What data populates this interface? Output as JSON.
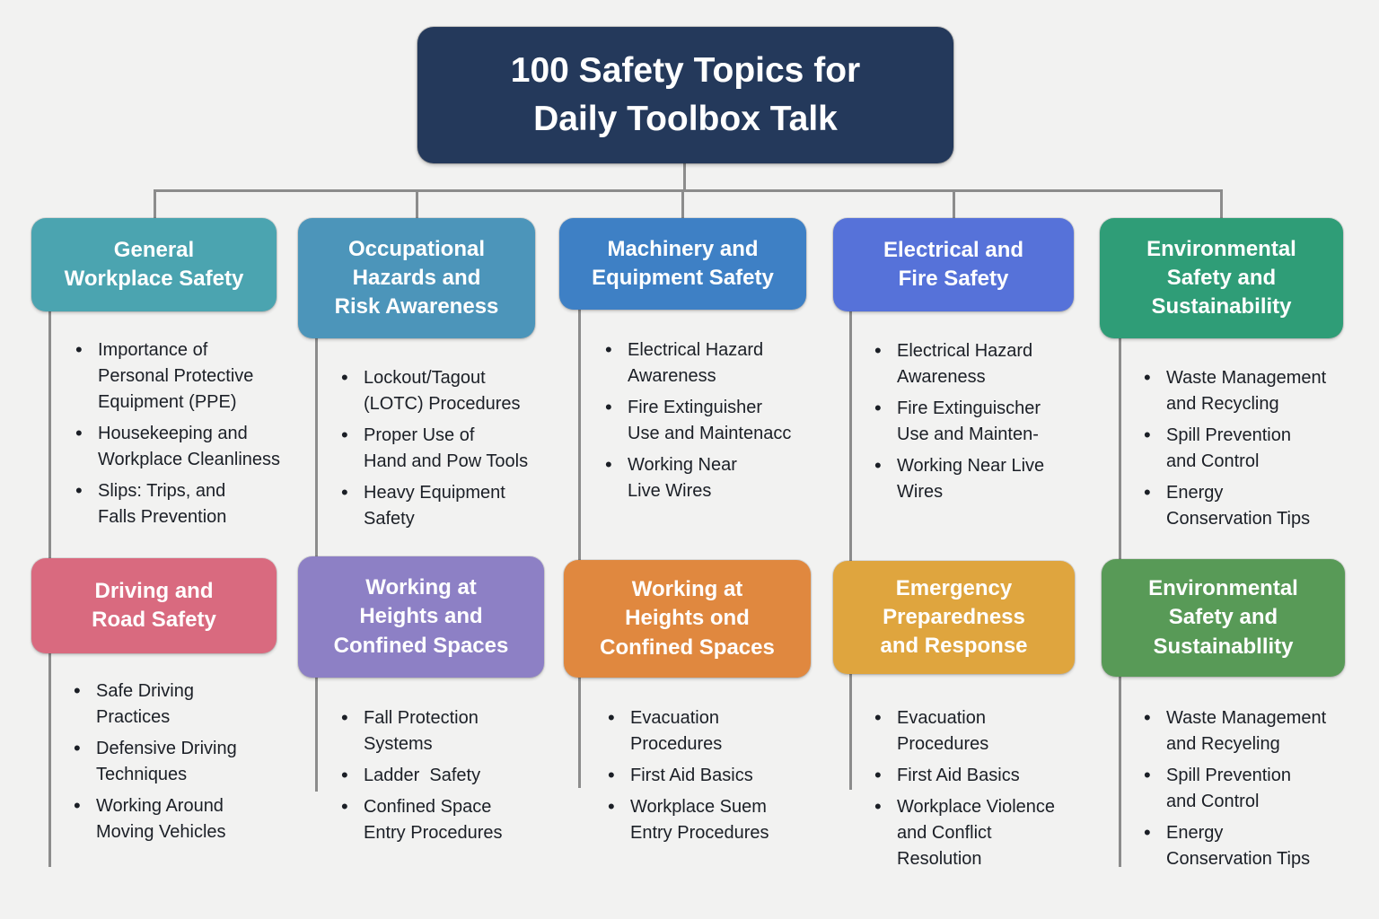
{
  "title": {
    "text": "100 Safety Topics for\nDaily Toolbox Talk",
    "bg": "#24395B"
  },
  "colors": {
    "background": "#F2F2F1",
    "connector": "#8C8C8C",
    "bullet_text": "#1B1F26",
    "header_text": "#FFFFFF"
  },
  "cards": [
    {
      "label": "General\nWorkplace Safety",
      "color": "#4BA4B0",
      "bullets": [
        "Importance of\nPersonal Protective\nEquipment (PPE)",
        "Housekeeping and\nWorkplace Cleanliness",
        "Slips: Trips, and\nFalls Prevention"
      ]
    },
    {
      "label": "Occupational\nHazards and\nRisk Awareness",
      "color": "#4C95BA",
      "bullets": [
        "Lockout/Tagout\n(LOTC) Procedures",
        "Proper Use of\nHand and Pow Tools",
        "Heavy Equipment\nSafety"
      ]
    },
    {
      "label": "Machinery and\nEquipment Safety",
      "color": "#3E80C5",
      "bullets": [
        "Electrical Hazard\nAwareness",
        "Fire Extinguisher\nUse and Maintenacc",
        "Working Near\nLive Wires"
      ]
    },
    {
      "label": "Electrical and\nFire Safety",
      "color": "#5672D9",
      "bullets": [
        "Electrical Hazard\nAwareness",
        "Fire Extinguischer\nUse and Mainten-",
        "Working Near Live\nWires"
      ]
    },
    {
      "label": "Environmental\nSafety and\nSustainability",
      "color": "#2F9D77",
      "bullets": [
        "Waste Management\nand Recycling",
        "Spill Prevention\nand Control",
        "Energy\nConservation Tips"
      ]
    },
    {
      "label": "Driving and\nRoad Safety",
      "color": "#D96A7F",
      "bullets": [
        "Safe Driving\nPractices",
        "Defensive Driving\nTechniques",
        "Working Around\nMoving Vehicles"
      ]
    },
    {
      "label": "Working at\nHeights and\nConfined Spaces",
      "color": "#8D80C5",
      "bullets": [
        "Fall Protection\nSystems",
        "Ladder  Safety",
        "Confined Space\nEntry Procedures"
      ]
    },
    {
      "label": "Working at\nHeights ond\nConfined Spaces",
      "color": "#E0883F",
      "bullets": [
        "Evacuation\nProcedures",
        "First Aid Basics",
        "Workplace Suem\nEntry Procedures"
      ]
    },
    {
      "label": "Emergency\nPreparedness\nand Response",
      "color": "#DFA53E",
      "bullets": [
        "Evacuation\nProcedures",
        "First Aid Basics",
        "Workplace Violence\nand Conflict\nResolution"
      ]
    },
    {
      "label": "Environmental\nSafety and\nSustainabllity",
      "color": "#589A57",
      "bullets": [
        "Waste Management\nand Recyeling",
        "Spill Prevention\nand Control",
        "Energy\nConservation Tips"
      ]
    }
  ]
}
